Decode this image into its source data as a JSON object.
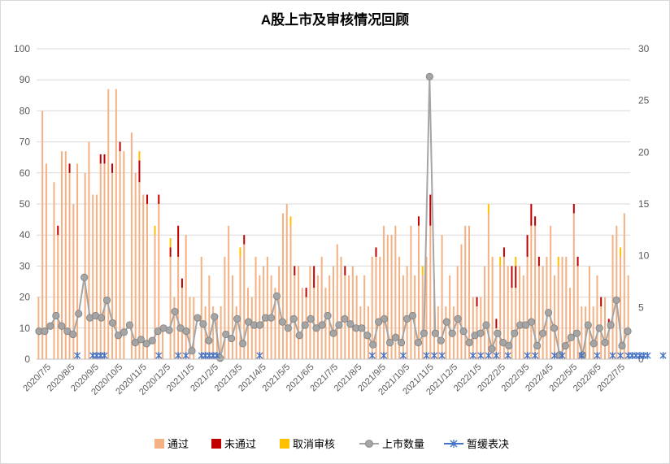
{
  "chart_data": {
    "type": "bar",
    "title": "A股上市及审核情况回顾",
    "x_tick_labels": [
      "2020/7/5",
      "2020/8/5",
      "2020/9/5",
      "2020/10/5",
      "2020/11/5",
      "2020/12/5",
      "2021/1/5",
      "2021/2/5",
      "2021/3/5",
      "2021/4/5",
      "2021/5/5",
      "2021/6/5",
      "2021/7/5",
      "2021/8/5",
      "2021/9/5",
      "2021/10/5",
      "2021/11/5",
      "2021/12/5",
      "2022/1/5",
      "2022/2/5",
      "2022/3/5",
      "2022/4/5",
      "2022/5/5",
      "2022/6/5",
      "2022/7/5"
    ],
    "y_left": {
      "min": 0,
      "max": 100,
      "step": 10
    },
    "y_right": {
      "min": 0,
      "max": 30,
      "step": 5
    },
    "legend": [
      "通过",
      "未通过",
      "取消审核",
      "上市数量",
      "暂缓表决"
    ],
    "colors": {
      "passed": "#f4b183",
      "failed": "#c00000",
      "cancelled": "#ffc000",
      "listed": "#a5a5a5",
      "postponed": "#4472c4"
    },
    "series": {
      "passed": [
        20,
        80,
        63,
        0,
        57,
        40,
        67,
        67,
        60,
        50,
        63,
        0,
        60,
        70,
        53,
        53,
        63,
        63,
        87,
        60,
        87,
        67,
        67,
        0,
        73,
        60,
        57,
        53,
        50,
        0,
        40,
        50,
        10,
        0,
        33,
        20,
        33,
        23,
        40,
        20,
        20,
        0,
        33,
        17,
        27,
        17,
        13,
        17,
        33,
        43,
        27,
        17,
        33,
        37,
        23,
        20,
        33,
        27,
        30,
        33,
        27,
        23,
        30,
        47,
        50,
        43,
        27,
        30,
        23,
        20,
        30,
        23,
        27,
        33,
        23,
        27,
        30,
        37,
        33,
        27,
        27,
        30,
        27,
        17,
        27,
        17,
        33,
        33,
        33,
        43,
        40,
        40,
        43,
        33,
        27,
        30,
        43,
        27,
        43,
        27,
        33,
        43,
        26,
        17,
        40,
        17,
        27,
        17,
        30,
        37,
        43,
        43,
        20,
        17,
        20,
        30,
        47,
        33,
        10,
        30,
        33,
        30,
        23,
        23,
        30,
        27,
        33,
        43,
        43,
        30,
        30,
        33,
        43,
        27,
        30,
        33,
        33,
        23,
        47,
        30,
        17,
        17,
        30,
        17,
        27,
        17,
        20,
        10,
        40,
        43,
        33,
        47,
        27
      ],
      "failed": [
        0,
        0,
        0,
        0,
        0,
        3,
        0,
        0,
        3,
        0,
        0,
        0,
        0,
        0,
        0,
        0,
        3,
        3,
        0,
        3,
        0,
        3,
        0,
        0,
        0,
        0,
        7,
        0,
        3,
        0,
        0,
        3,
        0,
        0,
        3,
        0,
        10,
        3,
        0,
        0,
        0,
        0,
        0,
        0,
        0,
        0,
        0,
        0,
        0,
        0,
        0,
        0,
        0,
        3,
        0,
        0,
        0,
        0,
        0,
        0,
        0,
        0,
        0,
        0,
        0,
        0,
        3,
        0,
        0,
        3,
        0,
        7,
        0,
        0,
        0,
        0,
        0,
        0,
        0,
        3,
        0,
        0,
        0,
        0,
        0,
        0,
        0,
        3,
        0,
        0,
        0,
        0,
        0,
        0,
        0,
        0,
        0,
        0,
        3,
        0,
        0,
        10,
        0,
        0,
        0,
        0,
        0,
        0,
        0,
        0,
        0,
        0,
        0,
        3,
        0,
        0,
        0,
        0,
        3,
        0,
        3,
        0,
        7,
        7,
        0,
        0,
        7,
        7,
        3,
        3,
        0,
        0,
        0,
        0,
        0,
        0,
        0,
        0,
        3,
        3,
        0,
        0,
        0,
        0,
        0,
        3,
        0,
        3,
        0,
        0,
        0,
        0,
        0
      ],
      "cancelled": [
        0,
        0,
        0,
        0,
        0,
        0,
        0,
        0,
        0,
        0,
        0,
        0,
        0,
        0,
        0,
        0,
        0,
        0,
        0,
        0,
        0,
        0,
        0,
        0,
        0,
        0,
        3,
        0,
        0,
        0,
        3,
        0,
        0,
        0,
        3,
        0,
        0,
        0,
        0,
        0,
        0,
        0,
        0,
        0,
        0,
        0,
        0,
        0,
        0,
        0,
        0,
        0,
        3,
        0,
        0,
        0,
        0,
        0,
        0,
        0,
        0,
        0,
        0,
        0,
        0,
        3,
        0,
        0,
        0,
        0,
        0,
        0,
        0,
        0,
        0,
        0,
        0,
        0,
        0,
        0,
        0,
        0,
        0,
        0,
        0,
        0,
        0,
        0,
        0,
        0,
        0,
        0,
        0,
        0,
        0,
        0,
        0,
        0,
        0,
        3,
        0,
        0,
        0,
        0,
        0,
        0,
        0,
        0,
        0,
        0,
        0,
        0,
        0,
        0,
        0,
        0,
        3,
        0,
        0,
        3,
        0,
        0,
        0,
        3,
        0,
        0,
        0,
        0,
        0,
        0,
        0,
        0,
        0,
        0,
        3,
        0,
        0,
        0,
        0,
        0,
        0,
        0,
        0,
        0,
        0,
        0,
        0,
        0,
        0,
        0,
        3,
        0,
        0
      ],
      "listed": [
        2.7,
        2.7,
        3.2,
        4.2,
        3.2,
        2.7,
        2.4,
        4.4,
        7.9,
        4.0,
        4.2,
        4.0,
        5.7,
        3.5,
        2.3,
        2.6,
        3.3,
        1.6,
        1.9,
        1.5,
        1.8,
        2.7,
        3.0,
        2.8,
        4.6,
        3.0,
        2.7,
        0.8,
        4.0,
        3.4,
        1.8,
        4.1,
        0.1,
        2.4,
        2.0,
        3.9,
        1.5,
        3.6,
        3.3,
        3.3,
        4.0,
        4.0,
        6.1,
        3.6,
        3.0,
        3.9,
        2.3,
        3.3,
        3.9,
        3.0,
        3.3,
        4.2,
        2.5,
        3.3,
        3.9,
        3.4,
        3.0,
        3.0,
        2.3,
        1.4,
        3.6,
        3.9,
        1.6,
        2.1,
        1.6,
        3.9,
        4.2,
        1.6,
        2.5,
        27.3,
        2.5,
        1.8,
        3.6,
        2.5,
        3.9,
        2.7,
        1.6,
        2.3,
        2.5,
        3.3,
        1.0,
        2.5,
        1.6,
        1.3,
        2.5,
        3.3,
        3.3,
        3.6,
        1.3,
        2.5,
        4.5,
        3.0,
        0.4,
        1.3,
        2.1,
        2.5,
        0.4,
        3.3,
        1.5,
        3.0,
        1.6,
        3.3,
        5.7,
        1.3,
        2.7
      ],
      "postponed_positions": [
        10,
        14,
        15,
        16,
        17,
        31,
        36,
        38,
        42,
        43,
        44,
        45,
        46,
        57,
        86,
        89,
        94,
        100,
        102,
        104,
        112,
        114,
        116,
        118,
        121,
        126,
        128,
        133,
        135,
        140,
        144,
        148,
        150,
        152,
        153,
        154,
        155,
        156,
        157,
        161
      ]
    }
  }
}
